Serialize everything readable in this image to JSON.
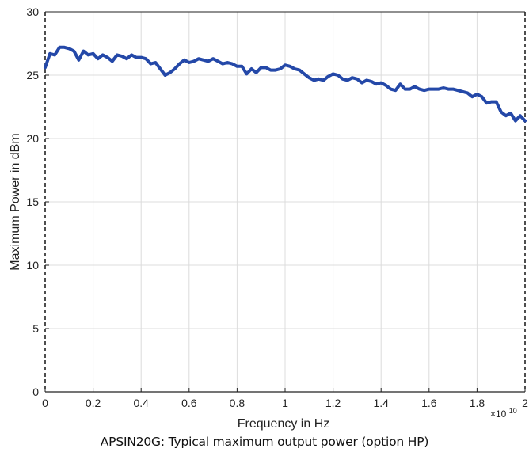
{
  "caption": "APSIN20G: Typical maximum output power (option HP)",
  "colors": {
    "line": "#2448a8",
    "grid": "#dcdcdc",
    "axis": "#222222"
  },
  "chart_data": {
    "type": "line",
    "title": "",
    "xlabel": "Frequency in Hz",
    "ylabel": "Maximum Power in dBm",
    "x_exponent_label": "×10",
    "x_exponent_power": "10",
    "xlim": [
      0,
      2
    ],
    "ylim": [
      0,
      30
    ],
    "x_scale_factor": 10000000000.0,
    "xticks": [
      "0",
      "0.2",
      "0.4",
      "0.6",
      "0.8",
      "1",
      "1.2",
      "1.4",
      "1.6",
      "1.8",
      "2"
    ],
    "yticks": [
      "0",
      "5",
      "10",
      "15",
      "20",
      "25",
      "30"
    ],
    "grid": true,
    "series": [
      {
        "x": [
          0.0,
          0.02,
          0.04,
          0.06,
          0.08,
          0.1,
          0.12,
          0.14,
          0.16,
          0.18,
          0.2,
          0.22,
          0.24,
          0.26,
          0.28,
          0.3,
          0.32,
          0.34,
          0.36,
          0.38,
          0.4,
          0.42,
          0.44,
          0.46,
          0.48,
          0.5,
          0.52,
          0.54,
          0.56,
          0.58,
          0.6,
          0.62,
          0.64,
          0.66,
          0.68,
          0.7,
          0.72,
          0.74,
          0.76,
          0.78,
          0.8,
          0.82,
          0.84,
          0.86,
          0.88,
          0.9,
          0.92,
          0.94,
          0.96,
          0.98,
          1.0,
          1.02,
          1.04,
          1.06,
          1.08,
          1.1,
          1.12,
          1.14,
          1.16,
          1.18,
          1.2,
          1.22,
          1.24,
          1.26,
          1.28,
          1.3,
          1.32,
          1.34,
          1.36,
          1.38,
          1.4,
          1.42,
          1.44,
          1.46,
          1.48,
          1.5,
          1.52,
          1.54,
          1.56,
          1.58,
          1.6,
          1.62,
          1.64,
          1.66,
          1.68,
          1.7,
          1.72,
          1.74,
          1.76,
          1.78,
          1.8,
          1.82,
          1.84,
          1.86,
          1.88,
          1.9,
          1.92,
          1.94,
          1.96,
          1.98,
          2.0
        ],
        "y": [
          25.6,
          26.7,
          26.6,
          27.2,
          27.2,
          27.1,
          26.9,
          26.2,
          26.9,
          26.6,
          26.7,
          26.3,
          26.6,
          26.4,
          26.1,
          26.6,
          26.5,
          26.3,
          26.6,
          26.4,
          26.4,
          26.3,
          25.9,
          26.0,
          25.5,
          25.0,
          25.2,
          25.5,
          25.9,
          26.2,
          26.0,
          26.1,
          26.3,
          26.2,
          26.1,
          26.3,
          26.1,
          25.9,
          26.0,
          25.9,
          25.7,
          25.7,
          25.1,
          25.5,
          25.2,
          25.6,
          25.6,
          25.4,
          25.4,
          25.5,
          25.8,
          25.7,
          25.5,
          25.4,
          25.1,
          24.8,
          24.6,
          24.7,
          24.6,
          24.9,
          25.1,
          25.0,
          24.7,
          24.6,
          24.8,
          24.7,
          24.4,
          24.6,
          24.5,
          24.3,
          24.4,
          24.2,
          23.9,
          23.8,
          24.3,
          23.9,
          23.9,
          24.1,
          23.9,
          23.8,
          23.9,
          23.9,
          23.9,
          24.0,
          23.9,
          23.9,
          23.8,
          23.7,
          23.6,
          23.3,
          23.5,
          23.3,
          22.8,
          22.9,
          22.9,
          22.1,
          21.8,
          22.0,
          21.4,
          21.8,
          21.4
        ]
      }
    ]
  }
}
